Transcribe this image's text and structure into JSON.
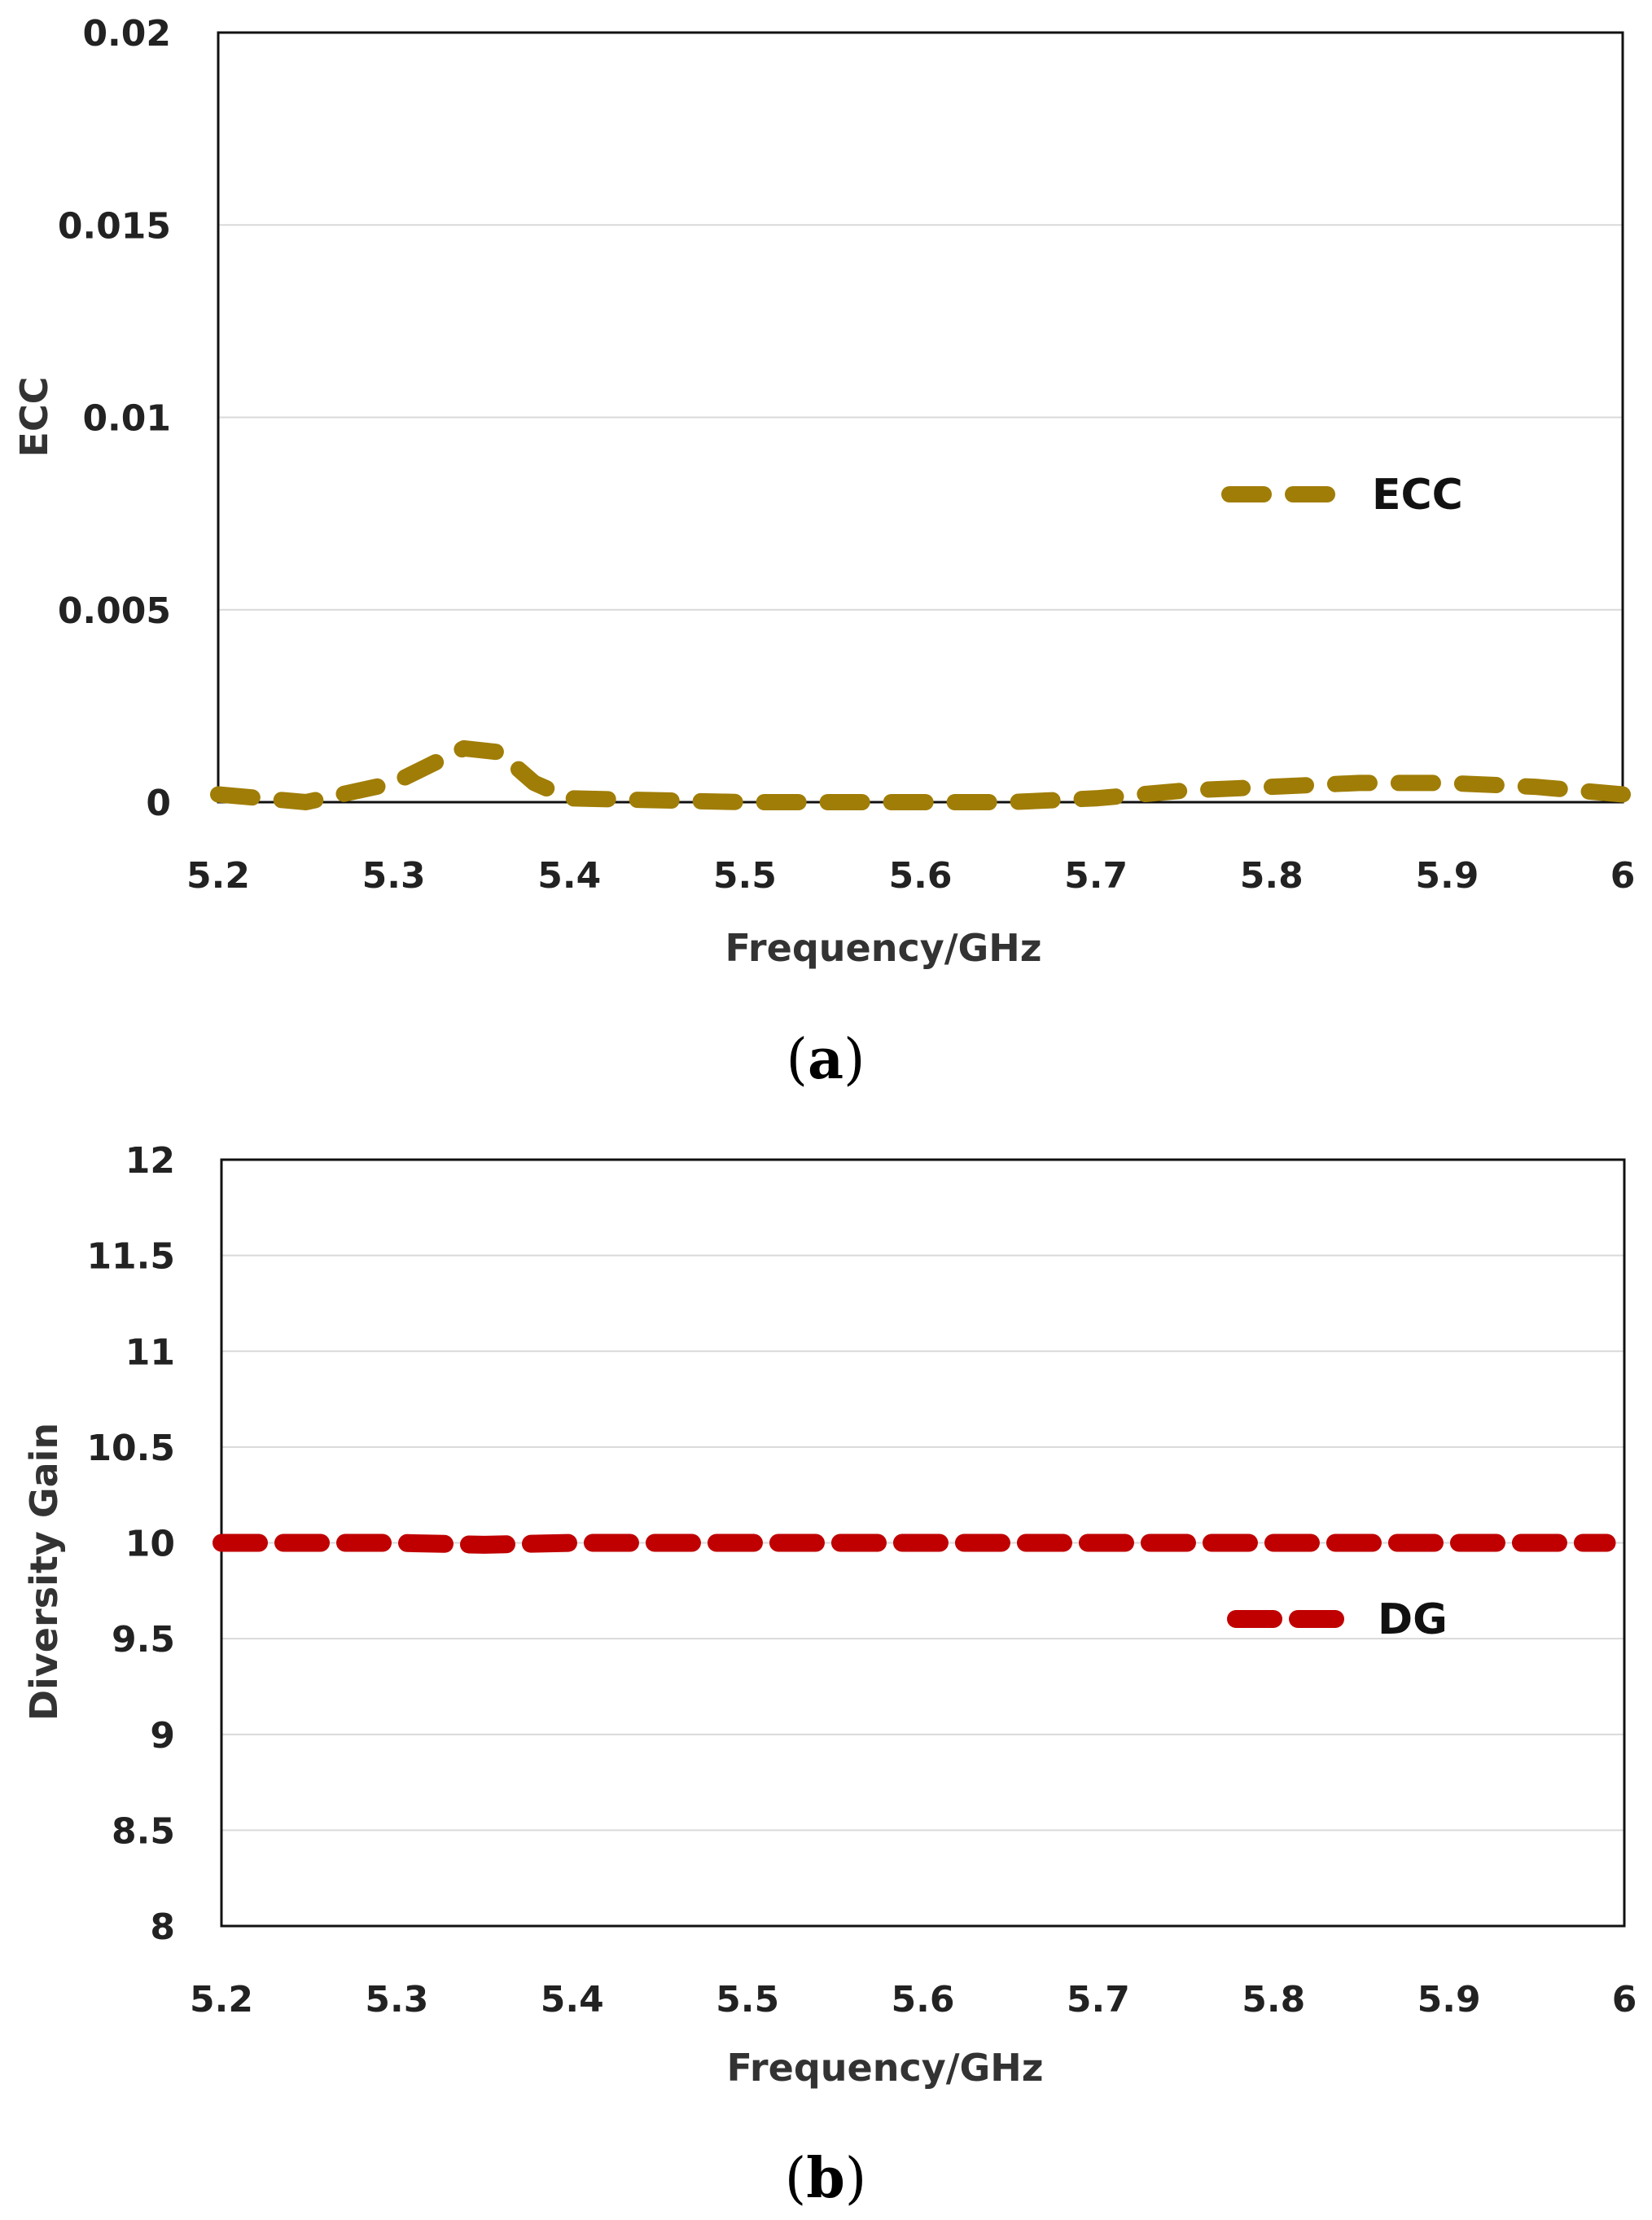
{
  "chart_data": [
    {
      "type": "line",
      "panel_label": "a",
      "title": "",
      "xlabel": "Frequency/GHz",
      "ylabel": "ECC",
      "xlim": [
        5.2,
        6
      ],
      "ylim": [
        0,
        0.02
      ],
      "grid": true,
      "legend_position": "right-middle",
      "x_tick_labels": [
        "5.2",
        "5.3",
        "5.4",
        "5.5",
        "5.6",
        "5.7",
        "5.8",
        "5.9",
        "6"
      ],
      "x_ticks": [
        5.2,
        5.3,
        5.4,
        5.5,
        5.6,
        5.7,
        5.8,
        5.9,
        6
      ],
      "y_tick_labels": [
        "0",
        "0.005",
        "0.01",
        "0.015",
        "0.02"
      ],
      "y_ticks": [
        0,
        0.005,
        0.01,
        0.015,
        0.02
      ],
      "series": [
        {
          "name": "ECC",
          "color": "#a07d06",
          "line_style": "dashed",
          "x": [
            5.2,
            5.25,
            5.3,
            5.34,
            5.36,
            5.38,
            5.4,
            5.5,
            5.6,
            5.65,
            5.7,
            5.75,
            5.8,
            5.85,
            5.9,
            5.95,
            6
          ],
          "y": [
            0.0002,
            0.0,
            0.0005,
            0.0014,
            0.0013,
            0.0005,
            0.0001,
            0.0,
            0.0,
            0.0,
            0.0001,
            0.0003,
            0.0004,
            0.0005,
            0.0005,
            0.0004,
            0.0002
          ]
        }
      ]
    },
    {
      "type": "line",
      "panel_label": "b",
      "title": "",
      "xlabel": "Frequency/GHz",
      "ylabel": "Diversity Gain",
      "xlim": [
        5.2,
        6
      ],
      "ylim": [
        8,
        12
      ],
      "grid": true,
      "legend_position": "right-middle",
      "x_tick_labels": [
        "5.2",
        "5.3",
        "5.4",
        "5.5",
        "5.6",
        "5.7",
        "5.8",
        "5.9",
        "6"
      ],
      "x_ticks": [
        5.2,
        5.3,
        5.4,
        5.5,
        5.6,
        5.7,
        5.8,
        5.9,
        6
      ],
      "y_tick_labels": [
        "8",
        "8.5",
        "9",
        "9.5",
        "10",
        "10.5",
        "11",
        "11.5",
        "12"
      ],
      "y_ticks": [
        8,
        8.5,
        9,
        9.5,
        10,
        10.5,
        11,
        11.5,
        12
      ],
      "series": [
        {
          "name": "DG",
          "color": "#c00000",
          "line_style": "dashed",
          "x": [
            5.2,
            5.3,
            5.35,
            5.4,
            5.5,
            5.6,
            5.7,
            5.8,
            5.9,
            5.99
          ],
          "y": [
            10.0,
            10.0,
            9.99,
            10.0,
            10.0,
            10.0,
            10.0,
            10.0,
            10.0,
            10.0
          ]
        }
      ]
    }
  ]
}
